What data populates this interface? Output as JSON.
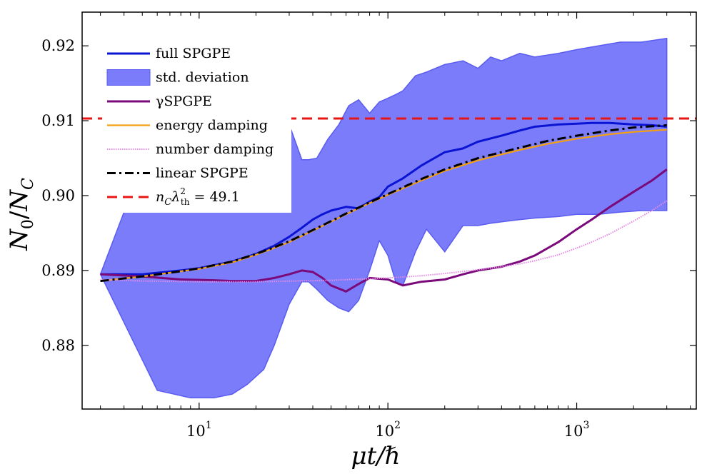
{
  "chart_data": {
    "type": "line",
    "xscale": "log",
    "xlim": [
      2.4,
      4300
    ],
    "ylim": [
      0.8715,
      0.9245
    ],
    "xlabel": "μt/ℏ",
    "ylabel": "N0/NC",
    "ylabel_parts": {
      "main1": "N",
      "sub1": "0",
      "slash": "/",
      "main2": "N",
      "sub2": "C"
    },
    "xlabel_parts": {
      "mu": "μ",
      "rest": "t/ℏ"
    },
    "x_ticks": [
      {
        "value": 10,
        "base": "10",
        "exp": "1"
      },
      {
        "value": 100,
        "base": "10",
        "exp": "2"
      },
      {
        "value": 1000,
        "base": "10",
        "exp": "3"
      }
    ],
    "y_ticks": [
      {
        "value": 0.88,
        "label": "0.88"
      },
      {
        "value": 0.89,
        "label": "0.89"
      },
      {
        "value": 0.9,
        "label": "0.90"
      },
      {
        "value": 0.91,
        "label": "0.91"
      },
      {
        "value": 0.92,
        "label": "0.92"
      }
    ],
    "grid": false,
    "legend_position": "top-left",
    "series": [
      {
        "name": "full SPGPE",
        "kind": "line",
        "color": "#0a14d2",
        "x": [
          3,
          5,
          8,
          10,
          15,
          20,
          25,
          30,
          35,
          40,
          45,
          50,
          60,
          70,
          80,
          90,
          100,
          120,
          150,
          200,
          250,
          300,
          400,
          500,
          600,
          800,
          1000,
          1200,
          1500,
          2000,
          2500,
          3000
        ],
        "y": [
          0.8895,
          0.8895,
          0.89,
          0.8903,
          0.8912,
          0.8922,
          0.8933,
          0.8945,
          0.8957,
          0.8968,
          0.8975,
          0.898,
          0.8985,
          0.8983,
          0.8992,
          0.8998,
          0.9012,
          0.9023,
          0.904,
          0.9058,
          0.9063,
          0.9072,
          0.908,
          0.9087,
          0.9092,
          0.9095,
          0.9096,
          0.9097,
          0.9097,
          0.9095,
          0.9094,
          0.9092
        ]
      },
      {
        "name": "std. deviation",
        "kind": "band",
        "color": "#7b7cfa",
        "x": [
          3,
          6,
          9,
          12,
          15,
          18,
          22,
          25,
          30,
          35,
          38,
          42,
          48,
          55,
          62,
          70,
          80,
          90,
          100,
          110,
          120,
          140,
          160,
          200,
          250,
          300,
          350,
          400,
          500,
          600,
          800,
          1000,
          1300,
          1700,
          2200,
          3000
        ],
        "upper": [
          0.8895,
          0.9095,
          0.9095,
          0.9095,
          0.9095,
          0.9095,
          0.9095,
          0.9095,
          0.9095,
          0.9048,
          0.9048,
          0.905,
          0.9075,
          0.9095,
          0.912,
          0.9128,
          0.911,
          0.9125,
          0.913,
          0.9135,
          0.914,
          0.916,
          0.9165,
          0.9175,
          0.918,
          0.917,
          0.9185,
          0.918,
          0.919,
          0.9185,
          0.919,
          0.9195,
          0.92,
          0.9205,
          0.9205,
          0.921
        ],
        "lower": [
          0.8895,
          0.874,
          0.873,
          0.873,
          0.8735,
          0.8748,
          0.8768,
          0.88,
          0.8855,
          0.8885,
          0.8885,
          0.8875,
          0.886,
          0.885,
          0.8845,
          0.886,
          0.89,
          0.894,
          0.892,
          0.8885,
          0.888,
          0.8925,
          0.8955,
          0.8925,
          0.896,
          0.896,
          0.8963,
          0.8965,
          0.8968,
          0.897,
          0.8972,
          0.8975,
          0.8975,
          0.8978,
          0.898,
          0.898
        ]
      },
      {
        "name": "γSPGPE",
        "kind": "line",
        "color": "#7a0a7a",
        "x": [
          3,
          5,
          8,
          12,
          15,
          20,
          25,
          30,
          35,
          40,
          45,
          50,
          60,
          70,
          80,
          100,
          120,
          150,
          200,
          250,
          300,
          400,
          500,
          600,
          800,
          1000,
          1200,
          1500,
          2000,
          2500,
          3000
        ],
        "y": [
          0.8895,
          0.8892,
          0.8888,
          0.8887,
          0.8886,
          0.8886,
          0.889,
          0.8895,
          0.89,
          0.8898,
          0.889,
          0.888,
          0.8872,
          0.8882,
          0.889,
          0.8888,
          0.888,
          0.8885,
          0.8888,
          0.8895,
          0.89,
          0.8905,
          0.8912,
          0.892,
          0.8938,
          0.8955,
          0.8968,
          0.8985,
          0.9005,
          0.902,
          0.9035
        ]
      },
      {
        "name": "energy damping",
        "kind": "line",
        "color": "#f5a00f",
        "x": [
          3,
          5,
          8,
          10,
          15,
          20,
          25,
          30,
          40,
          50,
          60,
          80,
          100,
          150,
          200,
          300,
          400,
          500,
          700,
          1000,
          1500,
          2000,
          3000
        ],
        "y": [
          0.8886,
          0.8892,
          0.8899,
          0.8902,
          0.8911,
          0.8921,
          0.893,
          0.8938,
          0.8953,
          0.8965,
          0.8975,
          0.899,
          0.9001,
          0.902,
          0.9033,
          0.9047,
          0.9055,
          0.9061,
          0.9069,
          0.9076,
          0.9082,
          0.9085,
          0.9088
        ]
      },
      {
        "name": "number damping",
        "kind": "dotted-line",
        "color": "#e58ae5",
        "x": [
          3,
          5,
          10,
          20,
          50,
          100,
          150,
          200,
          300,
          400,
          500,
          600,
          800,
          1000,
          1200,
          1500,
          2000,
          2500,
          3000
        ],
        "y": [
          0.8888,
          0.8886,
          0.8885,
          0.8885,
          0.8887,
          0.889,
          0.8893,
          0.8896,
          0.8901,
          0.8905,
          0.8909,
          0.8913,
          0.8921,
          0.893,
          0.8938,
          0.8949,
          0.8966,
          0.898,
          0.8993
        ]
      },
      {
        "name": "linear SPGPE",
        "kind": "dashdot-line",
        "color": "#000000",
        "x": [
          3,
          5,
          8,
          10,
          15,
          20,
          25,
          30,
          40,
          50,
          60,
          80,
          100,
          150,
          200,
          300,
          400,
          500,
          700,
          1000,
          1500,
          2000,
          3000
        ],
        "y": [
          0.8886,
          0.8892,
          0.8899,
          0.8903,
          0.8912,
          0.8922,
          0.8931,
          0.8939,
          0.8954,
          0.8966,
          0.8976,
          0.8991,
          0.9002,
          0.9022,
          0.9035,
          0.905,
          0.9058,
          0.9064,
          0.9073,
          0.908,
          0.9087,
          0.9091,
          0.9094
        ]
      },
      {
        "name": "nCλ2th = 49.1",
        "kind": "dashed-hline",
        "color": "#e81515",
        "label_parts": {
          "n": "n",
          "n_sub": "C",
          "lambda": "λ",
          "sup": "2",
          "sub": "th",
          "eq": " = 49.1"
        },
        "y": 0.9103
      }
    ]
  }
}
